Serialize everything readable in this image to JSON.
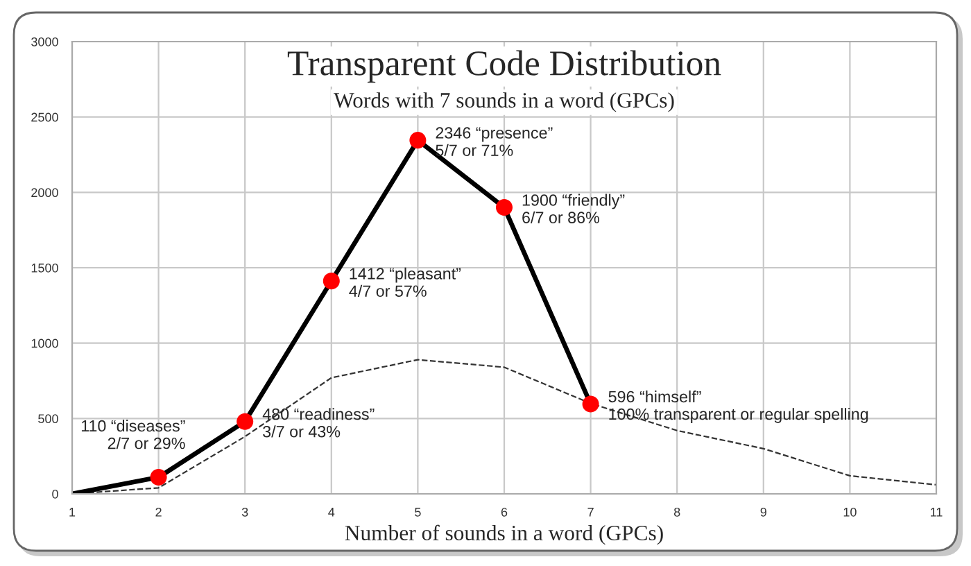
{
  "chart_data": {
    "type": "line",
    "title": "Transparent Code Distribution",
    "subtitle": "Words with 7 sounds in a word (GPCs)",
    "xlabel": "Number of sounds in a word (GPCs)",
    "xlim": [
      1,
      11
    ],
    "xticks": [
      1,
      2,
      3,
      4,
      5,
      6,
      7,
      8,
      9,
      10,
      11
    ],
    "ylim": [
      0,
      3000
    ],
    "yticks": [
      0,
      500,
      1000,
      1500,
      2000,
      2500,
      3000
    ],
    "grid": true,
    "series": [
      {
        "color": "#000000",
        "x": [
          1,
          2,
          3,
          4,
          5,
          6,
          7
        ],
        "values": [
          0,
          110,
          480,
          1412,
          2346,
          1900,
          596
        ],
        "line_style": "solid",
        "marker": "none"
      },
      {
        "type": "scatter",
        "color": "#ff0000",
        "x": [
          2,
          3,
          4,
          5,
          6,
          7
        ],
        "values": [
          110,
          480,
          1412,
          2346,
          1900,
          596
        ],
        "marker": "circle"
      },
      {
        "color": "#333333",
        "x": [
          1,
          2,
          3,
          4,
          5,
          6,
          7,
          8,
          9,
          10,
          11
        ],
        "values": [
          0,
          40,
          380,
          770,
          890,
          840,
          600,
          420,
          300,
          120,
          60
        ],
        "line_style": "dashed",
        "marker": "none"
      }
    ],
    "annotations": [
      {
        "text": "110 “diseases”\n2/7 or 29%",
        "x": 2,
        "y": 110
      },
      {
        "text": "480 “readiness”\n3/7 or 43%",
        "x": 3,
        "y": 480
      },
      {
        "text": "1412 “pleasant”\n4/7 or 57%",
        "x": 4,
        "y": 1412
      },
      {
        "text": "2346 “presence”\n5/7 or 71%",
        "x": 5,
        "y": 2346
      },
      {
        "text": "1900 “friendly”\n6/7 or 86%",
        "x": 6,
        "y": 1900
      },
      {
        "text": "596 “himself”\n100% transparent or regular spelling",
        "x": 7,
        "y": 596
      }
    ]
  }
}
